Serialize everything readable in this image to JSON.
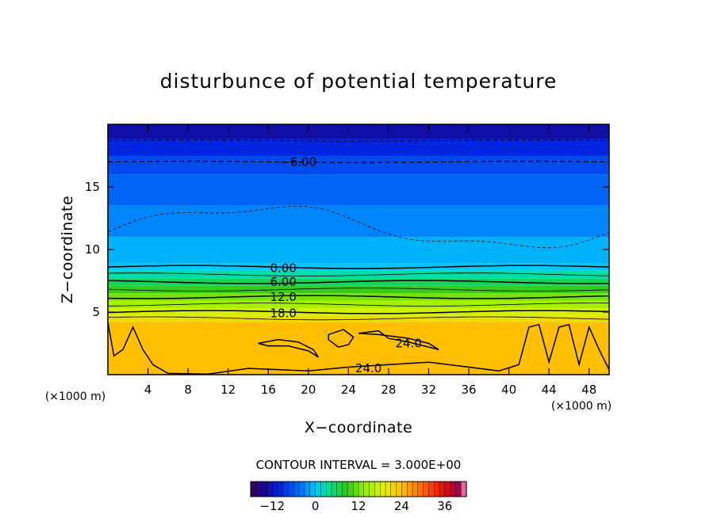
{
  "chart_data": {
    "type": "heatmap",
    "title": "disturbunce of potential temperature",
    "xlabel": "X−coordinate",
    "ylabel": "Z−coordinate",
    "x_unit": "(×1000 m)",
    "y_unit": "(×1000 m)",
    "xlim": [
      0,
      50
    ],
    "ylim": [
      0,
      20
    ],
    "x_ticks": [
      4,
      8,
      12,
      16,
      20,
      24,
      28,
      32,
      36,
      40,
      44,
      48
    ],
    "y_ticks": [
      5,
      10,
      15
    ],
    "grid": false,
    "contour_interval_text": "CONTOUR INTERVAL = 3.000E+00",
    "contour_interval": 3.0,
    "contour_labels": [
      {
        "text": "−6.00",
        "x": 19,
        "z": 17.0
      },
      {
        "text": "0.00",
        "x": 17.5,
        "z": 8.5
      },
      {
        "text": "6.00",
        "x": 17.5,
        "z": 7.4
      },
      {
        "text": "12.0",
        "x": 17.5,
        "z": 6.2
      },
      {
        "text": "18.0",
        "x": 17.5,
        "z": 4.9
      },
      {
        "text": "24.0",
        "x": 30,
        "z": 2.5
      },
      {
        "text": "24.0",
        "x": 26,
        "z": 0.5
      }
    ],
    "field_levels": [
      {
        "z0": 0.0,
        "z1": 4.2,
        "value": 24
      },
      {
        "z0": 4.2,
        "z1": 4.7,
        "value": 21
      },
      {
        "z0": 4.7,
        "z1": 5.3,
        "value": 18
      },
      {
        "z0": 5.3,
        "z1": 5.9,
        "value": 15
      },
      {
        "z0": 5.9,
        "z1": 6.5,
        "value": 12
      },
      {
        "z0": 6.5,
        "z1": 7.1,
        "value": 9
      },
      {
        "z0": 7.1,
        "z1": 7.7,
        "value": 6
      },
      {
        "z0": 7.7,
        "z1": 8.3,
        "value": 3
      },
      {
        "z0": 8.3,
        "z1": 8.9,
        "value": 0
      },
      {
        "z0": 8.9,
        "z1": 11.0,
        "value": -1
      },
      {
        "z0": 11.0,
        "z1": 13.5,
        "value": -3
      },
      {
        "z0": 13.5,
        "z1": 16.0,
        "value": -5
      },
      {
        "z0": 16.0,
        "z1": 17.5,
        "value": -7
      },
      {
        "z0": 17.5,
        "z1": 18.8,
        "value": -10
      },
      {
        "z0": 18.8,
        "z1": 20.0,
        "value": -13
      }
    ],
    "colorbar": {
      "min": -18,
      "max": 42,
      "ticks": [
        -12,
        0,
        12,
        24,
        36
      ],
      "tick_labels": [
        "−12",
        "0",
        "12",
        "24",
        "36"
      ]
    }
  }
}
